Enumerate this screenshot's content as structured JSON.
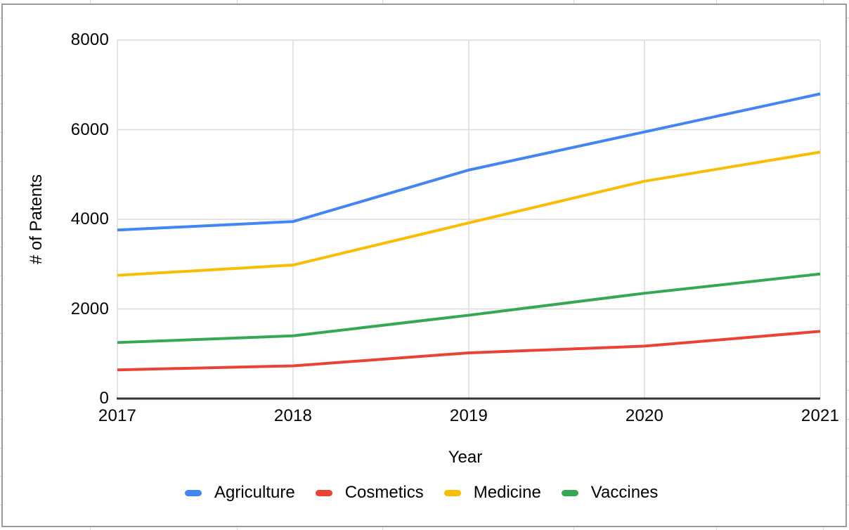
{
  "chart_data": {
    "type": "line",
    "title": "",
    "xlabel": "Year",
    "ylabel": "# of Patents",
    "x": [
      2017,
      2018,
      2019,
      2020,
      2021
    ],
    "x_tick_labels": [
      "2017",
      "2018",
      "2019",
      "2020",
      "2021"
    ],
    "yticks": [
      0,
      2000,
      4000,
      6000,
      8000
    ],
    "y_tick_labels": [
      "0",
      "2000",
      "4000",
      "6000",
      "8000"
    ],
    "ylim": [
      0,
      8000
    ],
    "grid": true,
    "grid_color": "#d9d9d9",
    "axis_color": "#333333",
    "legend_position": "bottom",
    "series": [
      {
        "name": "Agriculture",
        "color": "#4285F4",
        "values": [
          3760,
          3950,
          5100,
          5950,
          6800
        ]
      },
      {
        "name": "Cosmetics",
        "color": "#EA4335",
        "values": [
          640,
          730,
          1020,
          1170,
          1500
        ]
      },
      {
        "name": "Medicine",
        "color": "#FBBC04",
        "values": [
          2750,
          2980,
          3920,
          4850,
          5500
        ]
      },
      {
        "name": "Vaccines",
        "color": "#34A853",
        "values": [
          1250,
          1400,
          1860,
          2350,
          2780
        ]
      }
    ]
  },
  "window": {
    "chart_border_color": "#9b9b9b",
    "sheet_grid_color": "#d8d8d8"
  }
}
